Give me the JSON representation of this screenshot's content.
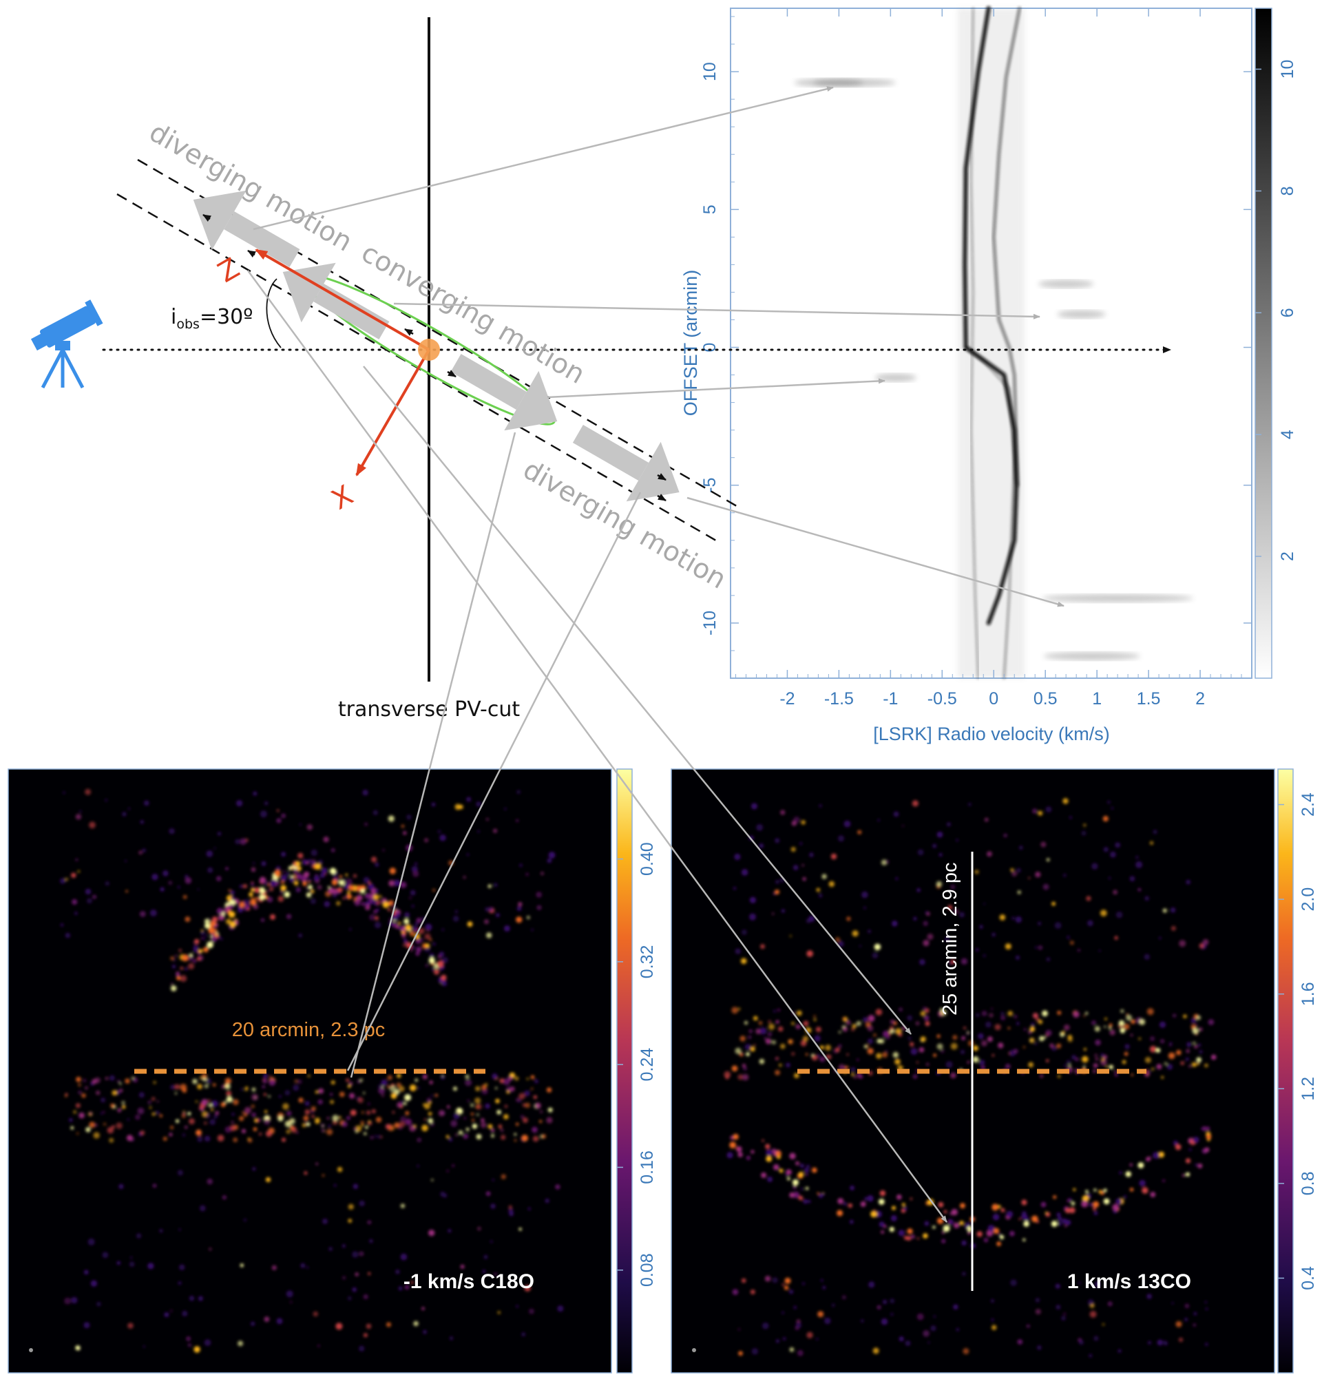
{
  "schematic": {
    "labels": {
      "diverging_top": "diverging motion",
      "converging": "converging motion",
      "diverging_bottom": "diverging motion",
      "axis_z": "Z",
      "axis_x": "X",
      "inclination_i": "i",
      "inclination_sub": "obs",
      "inclination_value": "=30º",
      "pv_cut": "transverse PV-cut"
    },
    "inclination_deg": 30,
    "colors": {
      "axes": "#e04020",
      "arrows": "#c4c4c4",
      "ellipse": "#6cd050",
      "telescope": "#3a8fe8",
      "core": "#f5a050"
    }
  },
  "pv_diagram": {
    "xlabel": "[LSRK] Radio velocity (km/s)",
    "ylabel": "OFFSET (arcmin)",
    "x_ticks": [
      "-2",
      "-1.5",
      "-1",
      "-0.5",
      "0",
      "0.5",
      "1",
      "1.5",
      "2"
    ],
    "y_ticks": [
      "10",
      "5",
      "0",
      "-5",
      "-10"
    ],
    "colorbar_ticks": [
      "10",
      "8",
      "6",
      "4",
      "2"
    ],
    "xlim": [
      -2.55,
      2.5
    ],
    "ylim": [
      -12,
      12.3
    ],
    "colorbar_range": [
      0,
      11
    ]
  },
  "map_left": {
    "label": "-1 km/s C18O",
    "scale_label": "20 arcmin, 2.3 pc",
    "colorbar_ticks": [
      "0.40",
      "0.32",
      "0.24",
      "0.16",
      "0.08"
    ],
    "colorbar_range": [
      0,
      0.47
    ]
  },
  "map_right": {
    "label": "1 km/s 13CO",
    "scale_label": "25 arcmin, 2.9 pc",
    "colorbar_ticks": [
      "2.4",
      "2.0",
      "1.6",
      "1.2",
      "0.8",
      "0.4"
    ],
    "colorbar_range": [
      0,
      2.55
    ]
  }
}
